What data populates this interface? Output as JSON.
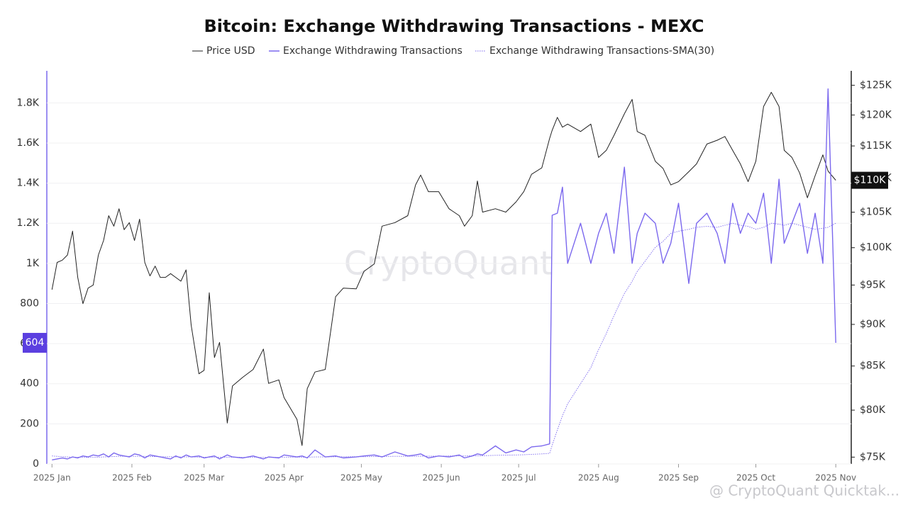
{
  "chart_data": {
    "type": "line",
    "title": "Bitcoin: Exchange Withdrawing Transactions - MEXC",
    "watermark": "CryptoQuant",
    "footer": "@ CryptoQuant Quicktak...",
    "x": [
      0,
      2,
      4,
      6,
      8,
      10,
      12,
      14,
      16,
      18,
      20,
      22,
      24,
      26,
      28,
      30,
      32,
      34,
      36,
      38,
      40,
      42,
      44,
      46,
      48,
      50,
      52,
      54,
      57,
      59,
      61,
      63,
      65,
      68,
      70,
      74,
      78,
      82,
      84,
      88,
      90,
      95,
      97,
      99,
      102,
      106,
      110,
      113,
      118,
      121,
      125,
      128,
      133,
      138,
      141,
      143,
      146,
      150,
      154,
      158,
      160,
      163,
      165,
      167,
      172,
      176,
      180,
      183,
      186,
      190,
      193,
      194,
      196,
      198,
      200,
      205,
      209,
      212,
      215,
      218,
      222,
      225,
      227,
      230,
      234,
      237,
      240,
      243,
      247,
      250,
      254,
      258,
      261,
      264,
      267,
      270,
      273,
      276,
      279,
      282,
      284,
      287,
      290,
      293,
      296,
      299,
      301,
      304
    ],
    "xlim": [
      -2,
      310
    ],
    "xticks": [
      {
        "value": 0,
        "label": "2025 Jan"
      },
      {
        "value": 31,
        "label": "2025 Feb"
      },
      {
        "value": 59,
        "label": "2025 Mar"
      },
      {
        "value": 90,
        "label": "2025 Apr"
      },
      {
        "value": 120,
        "label": "2025 May"
      },
      {
        "value": 151,
        "label": "2025 Jun"
      },
      {
        "value": 181,
        "label": "2025 Jul"
      },
      {
        "value": 212,
        "label": "2025 Aug"
      },
      {
        "value": 243,
        "label": "2025 Sep"
      },
      {
        "value": 273,
        "label": "2025 Oct"
      },
      {
        "value": 304,
        "label": "2025 Nov"
      }
    ],
    "ylim": [
      0,
      1960
    ],
    "yticks": [
      0,
      200,
      400,
      600,
      800,
      {
        "value": 1000,
        "label": "1K"
      },
      {
        "value": 1200,
        "label": "1.2K"
      },
      {
        "value": 1400,
        "label": "1.4K"
      },
      {
        "value": 1600,
        "label": "1.6K"
      },
      {
        "value": 1800,
        "label": "1.8K"
      }
    ],
    "y2lim": [
      74300,
      127500
    ],
    "y2log": true,
    "y2ticks": [
      {
        "value": 75000,
        "label": "$75K"
      },
      {
        "value": 80000,
        "label": "$80K"
      },
      {
        "value": 85000,
        "label": "$85K"
      },
      {
        "value": 90000,
        "label": "$90K"
      },
      {
        "value": 95000,
        "label": "$95K"
      },
      {
        "value": 100000,
        "label": "$100K"
      },
      {
        "value": 105000,
        "label": "$105K"
      },
      {
        "value": 110000,
        "label": "$110K"
      },
      {
        "value": 115000,
        "label": "$115K"
      },
      {
        "value": 120000,
        "label": "$120K"
      },
      {
        "value": 125000,
        "label": "$125K"
      }
    ],
    "grid": true,
    "series": [
      {
        "name": "Price USD",
        "color": "#222222",
        "axis": "y2",
        "last_value_label": "$110K",
        "values": [
          94400,
          98000,
          98300,
          99000,
          102300,
          96000,
          92600,
          94600,
          95000,
          99000,
          101000,
          104500,
          103000,
          105500,
          102500,
          103500,
          101000,
          104000,
          98000,
          96200,
          97500,
          96000,
          96000,
          96500,
          96000,
          95500,
          97000,
          89900,
          84100,
          84500,
          94000,
          86000,
          87800,
          78600,
          82700,
          83700,
          84600,
          87000,
          83000,
          83400,
          81400,
          79000,
          76200,
          82400,
          84300,
          84600,
          93500,
          94600,
          94500,
          96800,
          97800,
          103000,
          103500,
          104500,
          109000,
          110500,
          108000,
          108000,
          105500,
          104500,
          103000,
          104500,
          109600,
          105000,
          105500,
          105000,
          106500,
          108000,
          110600,
          111600,
          116200,
          117500,
          119600,
          118000,
          118500,
          117300,
          118500,
          113200,
          114300,
          116700,
          120200,
          122600,
          117300,
          116700,
          112600,
          111500,
          109000,
          109500,
          111000,
          112200,
          115300,
          115900,
          116500,
          114300,
          112200,
          109500,
          112600,
          121400,
          123800,
          121400,
          114300,
          113200,
          110800,
          107100,
          110400,
          113600,
          111100,
          109700
        ]
      },
      {
        "name": "Exchange Withdrawing Transactions",
        "color": "#7b68ee",
        "values": [
          20,
          25,
          30,
          25,
          35,
          30,
          40,
          35,
          45,
          40,
          50,
          35,
          55,
          45,
          40,
          35,
          50,
          45,
          30,
          45,
          40,
          35,
          30,
          25,
          40,
          30,
          45,
          35,
          40,
          30,
          35,
          40,
          25,
          45,
          35,
          30,
          40,
          25,
          35,
          30,
          45,
          35,
          40,
          30,
          70,
          35,
          40,
          30,
          35,
          40,
          45,
          35,
          60,
          40,
          45,
          50,
          30,
          40,
          35,
          45,
          30,
          40,
          50,
          45,
          90,
          55,
          70,
          60,
          85,
          90,
          100,
          1240,
          1250,
          1380,
          1000,
          1200,
          1000,
          1150,
          1250,
          1050,
          1480,
          1000,
          1150,
          1250,
          1200,
          1000,
          1100,
          1300,
          900,
          1200,
          1250,
          1150,
          1000,
          1300,
          1150,
          1250,
          1200,
          1350,
          1000,
          1420,
          1100,
          1200,
          1300,
          1050,
          1250,
          1000,
          1870,
          604
        ]
      },
      {
        "name": "Exchange Withdrawing Transactions-SMA(30)",
        "color": "#7b68ee",
        "dash": true,
        "values": [
          40,
          38,
          36,
          35,
          34,
          34,
          33,
          33,
          33,
          34,
          35,
          36,
          37,
          38,
          38,
          38,
          38,
          38,
          38,
          37,
          37,
          36,
          36,
          36,
          35,
          35,
          35,
          35,
          34,
          34,
          34,
          34,
          34,
          34,
          34,
          33,
          33,
          33,
          33,
          33,
          34,
          34,
          34,
          34,
          35,
          35,
          36,
          36,
          36,
          36,
          37,
          37,
          38,
          38,
          38,
          39,
          39,
          39,
          40,
          40,
          40,
          41,
          41,
          41,
          43,
          44,
          45,
          46,
          48,
          50,
          53,
          93,
          170,
          240,
          300,
          400,
          480,
          570,
          650,
          740,
          850,
          910,
          960,
          1010,
          1080,
          1110,
          1150,
          1160,
          1170,
          1180,
          1185,
          1180,
          1190,
          1200,
          1190,
          1185,
          1170,
          1180,
          1200,
          1195,
          1190,
          1200,
          1190,
          1180,
          1170,
          1175,
          1180,
          1200
        ]
      }
    ]
  }
}
